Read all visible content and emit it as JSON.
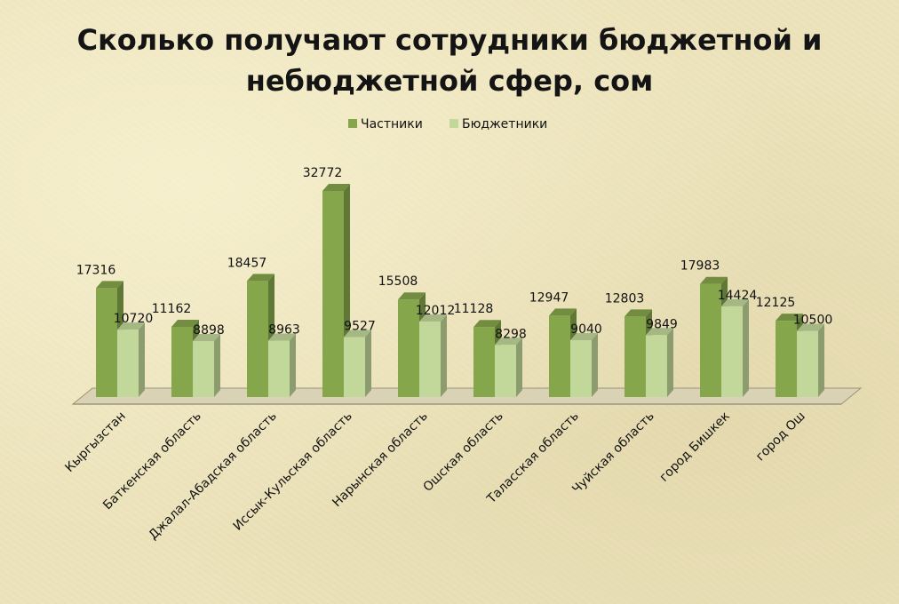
{
  "title_lines": [
    "Сколько получают сотрудники бюджетной и",
    "небюджетной сфер, сом"
  ],
  "chart_data": {
    "type": "bar",
    "title": "Сколько получают сотрудники бюджетной и небюджетной сфер, сом",
    "xlabel": "",
    "ylabel": "",
    "ylim": [
      0,
      35000
    ],
    "grid": false,
    "legend_position": "top",
    "categories": [
      "Кыргызстан",
      "Баткенская область",
      "Джалал-Абадская область",
      "Иссык-Кульская область",
      "Нарынская область",
      "Ошская область",
      "Таласская область",
      "Чуйская область",
      "город Бишкек",
      "город Ош"
    ],
    "series": [
      {
        "name": "Частники",
        "color": "#86a64b",
        "values": [
          17316,
          11162,
          18457,
          32772,
          15508,
          11128,
          12947,
          12803,
          17983,
          12125
        ]
      },
      {
        "name": "Бюджетники",
        "color": "#c2d89a",
        "values": [
          10720,
          8898,
          8963,
          9527,
          12012,
          8298,
          9040,
          9849,
          14424,
          10500
        ]
      }
    ]
  }
}
